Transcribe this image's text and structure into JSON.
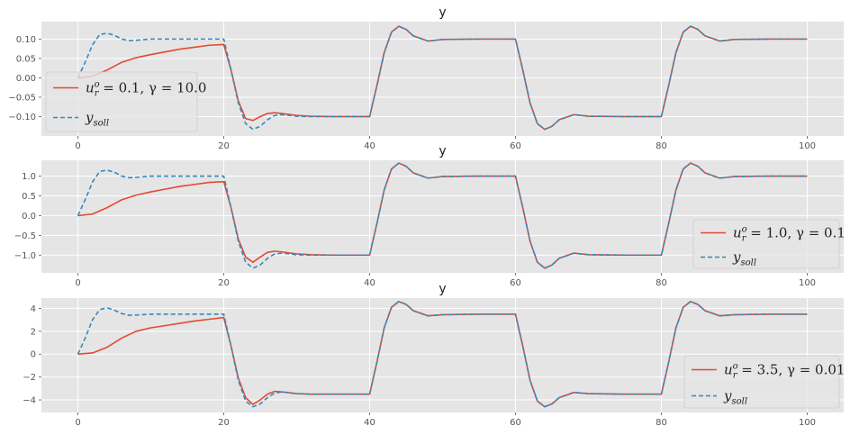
{
  "chart_data": [
    {
      "type": "line",
      "title": "y",
      "xlim": [
        -5,
        105
      ],
      "ylim": [
        -0.15,
        0.145
      ],
      "xticks": [
        "0",
        "20",
        "40",
        "60",
        "80",
        "100"
      ],
      "xtick_values": [
        0,
        20,
        40,
        60,
        80,
        100
      ],
      "yticks": [
        "0.10",
        "0.05",
        "0.00",
        "−0.05",
        "−0.10"
      ],
      "ytick_values": [
        0.1,
        0.05,
        0.0,
        -0.05,
        -0.1
      ],
      "legend_position": "bottom-left",
      "series": [
        {
          "name": "u_r^o = 0.1, γ = 10.0",
          "label_main": "u",
          "label_sub": "r",
          "label_sup": "o",
          "label_rest": " = 0.1, γ = 10.0",
          "color": "#E24A33",
          "style": "solid",
          "x": [
            0,
            2,
            4,
            6,
            8,
            10,
            12,
            14,
            16,
            18,
            20,
            21,
            22,
            23,
            24,
            25,
            26,
            27,
            28,
            30,
            32,
            35,
            38,
            40,
            41,
            42,
            43,
            44,
            45,
            46,
            48,
            50,
            55,
            60,
            61,
            62,
            63,
            64,
            65,
            66,
            68,
            70,
            75,
            80,
            81,
            82,
            83,
            84,
            85,
            86,
            88,
            90,
            95,
            100
          ],
          "y": [
            0,
            0.004,
            0.02,
            0.04,
            0.052,
            0.06,
            0.067,
            0.074,
            0.079,
            0.084,
            0.086,
            0.02,
            -0.06,
            -0.105,
            -0.11,
            -0.1,
            -0.092,
            -0.09,
            -0.092,
            -0.097,
            -0.099,
            -0.1,
            -0.1,
            -0.1,
            -0.02,
            0.065,
            0.118,
            0.133,
            0.125,
            0.108,
            0.095,
            0.099,
            0.1,
            0.1,
            0.02,
            -0.065,
            -0.118,
            -0.133,
            -0.125,
            -0.108,
            -0.095,
            -0.099,
            -0.1,
            -0.1,
            -0.02,
            0.065,
            0.118,
            0.133,
            0.125,
            0.108,
            0.095,
            0.099,
            0.1,
            0.1
          ]
        },
        {
          "name": "y_soll",
          "label_main": "y",
          "label_sub": "soll",
          "label_sup": "",
          "label_rest": "",
          "color": "#348ABD",
          "style": "dashed",
          "x": [
            0,
            1,
            2,
            3,
            4,
            5,
            6,
            7,
            8,
            10,
            12,
            15,
            20,
            21,
            22,
            23,
            24,
            25,
            26,
            27,
            28,
            30,
            32,
            35,
            40,
            41,
            42,
            43,
            44,
            45,
            46,
            48,
            50,
            55,
            60,
            61,
            62,
            63,
            64,
            65,
            66,
            68,
            70,
            75,
            80,
            81,
            82,
            83,
            84,
            85,
            86,
            88,
            90,
            95,
            100
          ],
          "y": [
            0,
            0.04,
            0.085,
            0.112,
            0.115,
            0.11,
            0.1,
            0.096,
            0.097,
            0.1,
            0.1,
            0.1,
            0.1,
            0.02,
            -0.065,
            -0.118,
            -0.133,
            -0.125,
            -0.108,
            -0.097,
            -0.095,
            -0.099,
            -0.1,
            -0.1,
            -0.1,
            -0.02,
            0.065,
            0.118,
            0.133,
            0.125,
            0.108,
            0.095,
            0.099,
            0.1,
            0.1,
            0.02,
            -0.065,
            -0.118,
            -0.133,
            -0.125,
            -0.108,
            -0.095,
            -0.099,
            -0.1,
            -0.1,
            -0.02,
            0.065,
            0.118,
            0.133,
            0.125,
            0.108,
            0.095,
            0.099,
            0.1,
            0.1
          ]
        }
      ]
    },
    {
      "type": "line",
      "title": "y",
      "xlim": [
        -5,
        105
      ],
      "ylim": [
        -1.45,
        1.4
      ],
      "xticks": [
        "0",
        "20",
        "40",
        "60",
        "80",
        "100"
      ],
      "xtick_values": [
        0,
        20,
        40,
        60,
        80,
        100
      ],
      "yticks": [
        "1.0",
        "0.5",
        "0.0",
        "−0.5",
        "−1.0"
      ],
      "ytick_values": [
        1.0,
        0.5,
        0.0,
        -0.5,
        -1.0
      ],
      "legend_position": "bottom-right",
      "series": [
        {
          "name": "u_r^o = 1.0, γ = 0.1",
          "label_main": "u",
          "label_sub": "r",
          "label_sup": "o",
          "label_rest": " = 1.0, γ = 0.1",
          "color": "#E24A33",
          "style": "solid",
          "x": [
            0,
            2,
            4,
            6,
            8,
            10,
            12,
            14,
            16,
            18,
            20,
            21,
            22,
            23,
            24,
            25,
            26,
            27,
            28,
            30,
            32,
            35,
            38,
            40,
            41,
            42,
            43,
            44,
            45,
            46,
            48,
            50,
            55,
            60,
            61,
            62,
            63,
            64,
            65,
            66,
            68,
            70,
            75,
            80,
            81,
            82,
            83,
            84,
            85,
            86,
            88,
            90,
            95,
            100
          ],
          "y": [
            0,
            0.04,
            0.2,
            0.4,
            0.52,
            0.6,
            0.67,
            0.74,
            0.79,
            0.84,
            0.86,
            0.2,
            -0.6,
            -1.05,
            -1.18,
            -1.05,
            -0.93,
            -0.9,
            -0.92,
            -0.97,
            -0.99,
            -1.0,
            -1.0,
            -1.0,
            -0.2,
            0.65,
            1.18,
            1.33,
            1.25,
            1.08,
            0.95,
            0.99,
            1.0,
            1.0,
            0.2,
            -0.65,
            -1.18,
            -1.33,
            -1.25,
            -1.08,
            -0.95,
            -0.99,
            -1.0,
            -1.0,
            -0.2,
            0.65,
            1.18,
            1.33,
            1.25,
            1.08,
            0.95,
            0.99,
            1.0,
            1.0
          ]
        },
        {
          "name": "y_soll",
          "label_main": "y",
          "label_sub": "soll",
          "label_sup": "",
          "label_rest": "",
          "color": "#348ABD",
          "style": "dashed",
          "x": [
            0,
            1,
            2,
            3,
            4,
            5,
            6,
            7,
            8,
            10,
            12,
            15,
            20,
            21,
            22,
            23,
            24,
            25,
            26,
            27,
            28,
            30,
            32,
            35,
            40,
            41,
            42,
            43,
            44,
            45,
            46,
            48,
            50,
            55,
            60,
            61,
            62,
            63,
            64,
            65,
            66,
            68,
            70,
            75,
            80,
            81,
            82,
            83,
            84,
            85,
            86,
            88,
            90,
            95,
            100
          ],
          "y": [
            0,
            0.4,
            0.85,
            1.12,
            1.15,
            1.1,
            1.0,
            0.96,
            0.97,
            1.0,
            1.0,
            1.0,
            1.0,
            0.2,
            -0.65,
            -1.18,
            -1.33,
            -1.25,
            -1.08,
            -0.97,
            -0.95,
            -0.99,
            -1.0,
            -1.0,
            -1.0,
            -0.2,
            0.65,
            1.18,
            1.33,
            1.25,
            1.08,
            0.95,
            0.99,
            1.0,
            1.0,
            0.2,
            -0.65,
            -1.18,
            -1.33,
            -1.25,
            -1.08,
            -0.95,
            -0.99,
            -1.0,
            -1.0,
            -0.2,
            0.65,
            1.18,
            1.33,
            1.25,
            1.08,
            0.95,
            0.99,
            1.0,
            1.0
          ]
        }
      ]
    },
    {
      "type": "line",
      "title": "y",
      "xlim": [
        -5,
        105
      ],
      "ylim": [
        -5.1,
        4.9
      ],
      "xticks": [
        "0",
        "20",
        "40",
        "60",
        "80",
        "100"
      ],
      "xtick_values": [
        0,
        20,
        40,
        60,
        80,
        100
      ],
      "yticks": [
        "4",
        "2",
        "0",
        "−2",
        "−4"
      ],
      "ytick_values": [
        4,
        2,
        0,
        -2,
        -4
      ],
      "legend_position": "bottom-right",
      "series": [
        {
          "name": "u_r^o = 3.5, γ = 0.01",
          "label_main": "u",
          "label_sub": "r",
          "label_sup": "o",
          "label_rest": " = 3.5, γ = 0.01",
          "color": "#E24A33",
          "style": "solid",
          "x": [
            0,
            2,
            4,
            6,
            8,
            10,
            12,
            14,
            16,
            18,
            20,
            21,
            22,
            23,
            24,
            25,
            26,
            27,
            28,
            30,
            32,
            35,
            38,
            40,
            41,
            42,
            43,
            44,
            45,
            46,
            48,
            50,
            55,
            60,
            61,
            62,
            63,
            64,
            65,
            66,
            68,
            70,
            75,
            80,
            81,
            82,
            83,
            84,
            85,
            86,
            88,
            90,
            95,
            100
          ],
          "y": [
            0,
            0.1,
            0.6,
            1.4,
            2.0,
            2.3,
            2.5,
            2.7,
            2.9,
            3.05,
            3.2,
            0.7,
            -2.1,
            -3.8,
            -4.4,
            -4.0,
            -3.5,
            -3.25,
            -3.3,
            -3.45,
            -3.5,
            -3.5,
            -3.5,
            -3.5,
            -0.7,
            2.3,
            4.1,
            4.6,
            4.35,
            3.8,
            3.35,
            3.45,
            3.5,
            3.5,
            0.7,
            -2.3,
            -4.1,
            -4.6,
            -4.35,
            -3.8,
            -3.35,
            -3.45,
            -3.5,
            -3.5,
            -0.7,
            2.3,
            4.1,
            4.6,
            4.35,
            3.8,
            3.35,
            3.45,
            3.5,
            3.5
          ]
        },
        {
          "name": "y_soll",
          "label_main": "y",
          "label_sub": "soll",
          "label_sup": "",
          "label_rest": "",
          "color": "#348ABD",
          "style": "dashed",
          "x": [
            0,
            1,
            2,
            3,
            4,
            5,
            6,
            7,
            8,
            10,
            12,
            15,
            20,
            21,
            22,
            23,
            24,
            25,
            26,
            27,
            28,
            30,
            32,
            35,
            40,
            41,
            42,
            43,
            44,
            45,
            46,
            48,
            50,
            55,
            60,
            61,
            62,
            63,
            64,
            65,
            66,
            68,
            70,
            75,
            80,
            81,
            82,
            83,
            84,
            85,
            86,
            88,
            90,
            95,
            100
          ],
          "y": [
            0,
            1.4,
            3.0,
            3.9,
            4.05,
            3.85,
            3.55,
            3.4,
            3.42,
            3.5,
            3.5,
            3.5,
            3.5,
            0.7,
            -2.3,
            -4.1,
            -4.6,
            -4.35,
            -3.8,
            -3.4,
            -3.3,
            -3.45,
            -3.5,
            -3.5,
            -3.5,
            -0.7,
            2.3,
            4.1,
            4.6,
            4.35,
            3.8,
            3.35,
            3.45,
            3.5,
            3.5,
            0.7,
            -2.3,
            -4.1,
            -4.6,
            -4.35,
            -3.8,
            -3.35,
            -3.45,
            -3.5,
            -3.5,
            -0.7,
            2.3,
            4.1,
            4.6,
            4.35,
            3.8,
            3.35,
            3.45,
            3.5,
            3.5
          ]
        }
      ]
    }
  ]
}
